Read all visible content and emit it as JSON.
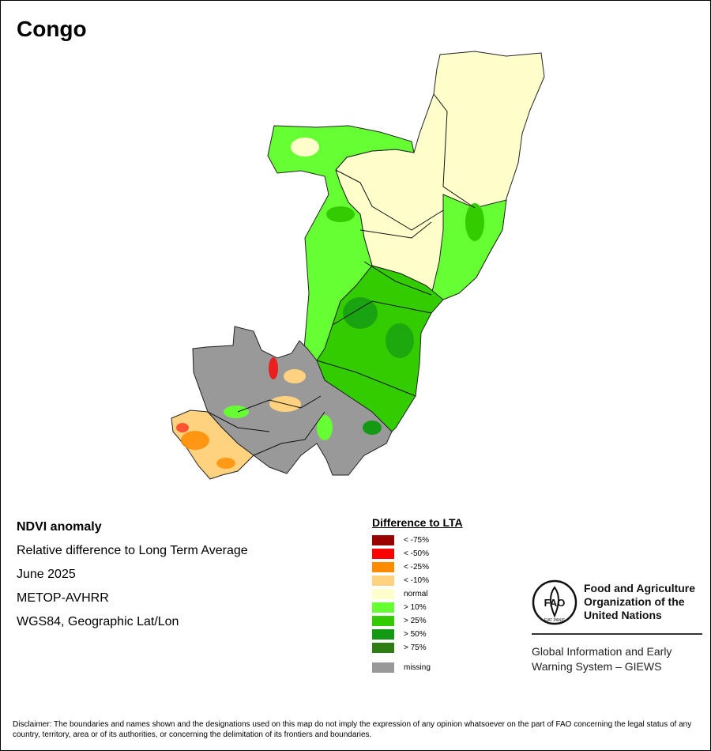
{
  "title": "Congo",
  "info": {
    "product": "NDVI anomaly",
    "description": "Relative difference to Long Term Average",
    "period": "June 2025",
    "sensor": "METOP-AVHRR",
    "projection": "WGS84, Geographic Lat/Lon"
  },
  "legend": {
    "title": "Difference to LTA",
    "items": [
      {
        "label": "< -75%",
        "color": "#990000"
      },
      {
        "label": "< -50%",
        "color": "#ff0000"
      },
      {
        "label": "< -25%",
        "color": "#ff8c00"
      },
      {
        "label": "< -10%",
        "color": "#ffd27f"
      },
      {
        "label": "normal",
        "color": "#ffffcc"
      },
      {
        "label": "> 10%",
        "color": "#66ff33"
      },
      {
        "label": "> 25%",
        "color": "#33cc00"
      },
      {
        "label": "> 50%",
        "color": "#149914"
      },
      {
        "label": "> 75%",
        "color": "#2e7d12"
      }
    ],
    "missing": {
      "label": "missing",
      "color": "#999999"
    }
  },
  "fao": {
    "name_line1": "Food and Agriculture",
    "name_line2": "Organization of the",
    "name_line3": "United Nations",
    "logo_letters": "FAO",
    "logo_motto": "FIAT PANIS",
    "giews_line1": "Global Information and Early",
    "giews_line2": "Warning System – GIEWS"
  },
  "disclaimer": "Disclaimer: The boundaries and names shown and the designations used on this map do not imply the expression of any opinion whatsoever on the part of FAO concerning the legal status of any country, territory, area or of its authorities, or concerning the delimitation of its frontiers and boundaries."
}
